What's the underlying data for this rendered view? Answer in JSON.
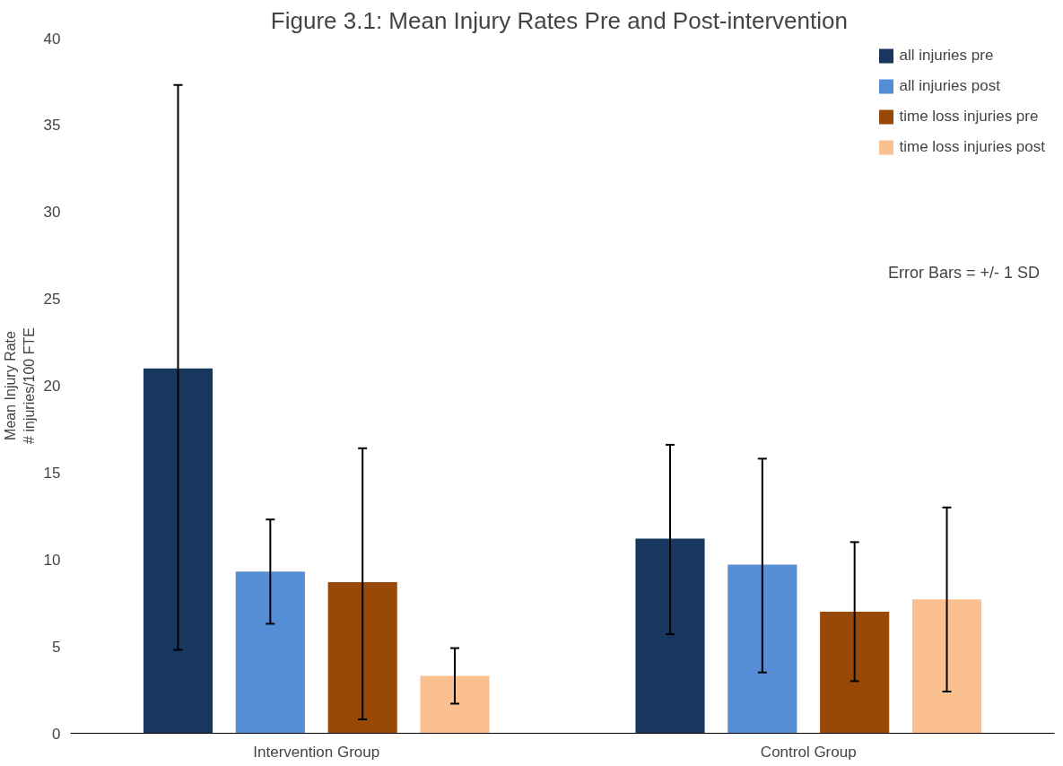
{
  "chart_data": {
    "type": "bar",
    "title": "Figure 3.1:  Mean Injury Rates Pre and Post-intervention",
    "ylabel": "Mean Injury Rate\n# injuries/100 FTE",
    "categories": [
      "Intervention Group",
      "Control Group"
    ],
    "series": [
      {
        "name": "all injuries pre",
        "color": "#17375e",
        "values": [
          21.0,
          11.2
        ],
        "errors": [
          [
            4.8,
            37.3
          ],
          [
            5.7,
            16.6
          ]
        ]
      },
      {
        "name": "all injuries post",
        "color": "#558ed5",
        "values": [
          9.3,
          9.7
        ],
        "errors": [
          [
            6.3,
            12.3
          ],
          [
            3.5,
            15.8
          ]
        ]
      },
      {
        "name": "time loss injuries pre",
        "color": "#984807",
        "values": [
          8.7,
          7.0
        ],
        "errors": [
          [
            0.8,
            16.4
          ],
          [
            3.0,
            11.0
          ]
        ]
      },
      {
        "name": "time loss injuries post",
        "color": "#fac090",
        "values": [
          3.3,
          7.7
        ],
        "errors": [
          [
            1.7,
            4.9
          ],
          [
            2.4,
            13.0
          ]
        ]
      }
    ],
    "ylim": [
      0,
      40
    ],
    "yticks": [
      0,
      5,
      10,
      15,
      20,
      25,
      30,
      35,
      40
    ],
    "grid": false,
    "legend": "top right",
    "annotations": [
      "Error Bars = +/- 1 SD"
    ]
  }
}
